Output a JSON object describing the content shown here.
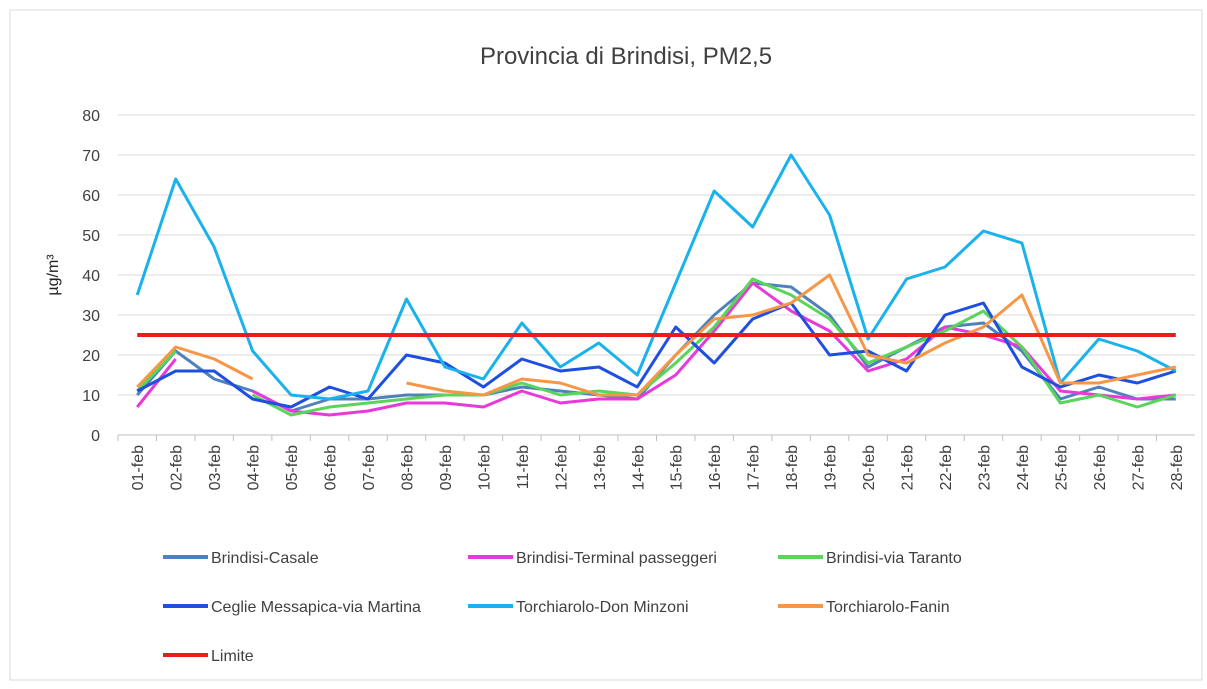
{
  "chart_data": {
    "type": "line",
    "title": "Provincia di Brindisi, PM2,5",
    "y_label": "µg/m³",
    "categories": [
      "01-feb",
      "02-feb",
      "03-feb",
      "04-feb",
      "05-feb",
      "06-feb",
      "07-feb",
      "08-feb",
      "09-feb",
      "10-feb",
      "11-feb",
      "12-feb",
      "13-feb",
      "14-feb",
      "15-feb",
      "16-feb",
      "17-feb",
      "18-feb",
      "19-feb",
      "20-feb",
      "21-feb",
      "22-feb",
      "23-feb",
      "24-feb",
      "25-feb",
      "26-feb",
      "27-feb",
      "28-feb"
    ],
    "series": [
      {
        "name": "Brindisi-Casale",
        "color": "#4f81bd",
        "values": [
          10,
          21,
          14,
          11,
          6,
          9,
          9,
          10,
          10,
          10,
          12,
          11,
          10,
          9,
          20,
          30,
          38,
          37,
          30,
          17,
          22,
          27,
          28,
          21,
          9,
          12,
          9,
          9
        ]
      },
      {
        "name": "Brindisi-Terminal passeggeri",
        "color": "#e83ad8",
        "values": [
          7,
          19,
          null,
          11,
          6,
          5,
          6,
          8,
          8,
          7,
          11,
          8,
          9,
          9,
          15,
          26,
          38,
          31,
          26,
          16,
          19,
          27,
          25,
          22,
          11,
          10,
          9,
          10
        ]
      },
      {
        "name": "Brindisi-via Taranto",
        "color": "#5bd45b",
        "values": [
          11,
          21,
          null,
          10,
          5,
          7,
          8,
          9,
          10,
          10,
          13,
          10,
          11,
          10,
          18,
          27,
          39,
          35,
          29,
          18,
          22,
          26,
          31,
          22,
          8,
          10,
          7,
          10
        ]
      },
      {
        "name": "Ceglie Messapica-via Martina",
        "color": "#1f4fe0",
        "values": [
          11,
          16,
          16,
          9,
          7,
          12,
          9,
          20,
          18,
          12,
          19,
          16,
          17,
          12,
          27,
          18,
          29,
          33,
          20,
          21,
          16,
          30,
          33,
          17,
          12,
          15,
          13,
          16
        ]
      },
      {
        "name": "Torchiarolo-Don Minzoni",
        "color": "#1ab2ec",
        "values": [
          35,
          64,
          47,
          21,
          10,
          9,
          11,
          34,
          17,
          14,
          28,
          17,
          23,
          15,
          38,
          61,
          52,
          70,
          55,
          24,
          39,
          42,
          51,
          48,
          13,
          24,
          21,
          16
        ]
      },
      {
        "name": "Torchiarolo-Fanin",
        "color": "#f79646",
        "values": [
          12,
          22,
          19,
          14,
          null,
          null,
          null,
          13,
          11,
          10,
          14,
          13,
          10,
          10,
          20,
          29,
          30,
          33,
          40,
          20,
          18,
          23,
          27,
          35,
          13,
          13,
          15,
          17
        ]
      },
      {
        "name": "Limite",
        "color": "#e81c1c",
        "values": [
          25,
          25,
          25,
          25,
          25,
          25,
          25,
          25,
          25,
          25,
          25,
          25,
          25,
          25,
          25,
          25,
          25,
          25,
          25,
          25,
          25,
          25,
          25,
          25,
          25,
          25,
          25,
          25
        ]
      }
    ],
    "ylim": [
      0,
      80
    ],
    "yticks": [
      0,
      10,
      20,
      30,
      40,
      50,
      60,
      70,
      80
    ],
    "grid": true,
    "legend": "bottom"
  }
}
